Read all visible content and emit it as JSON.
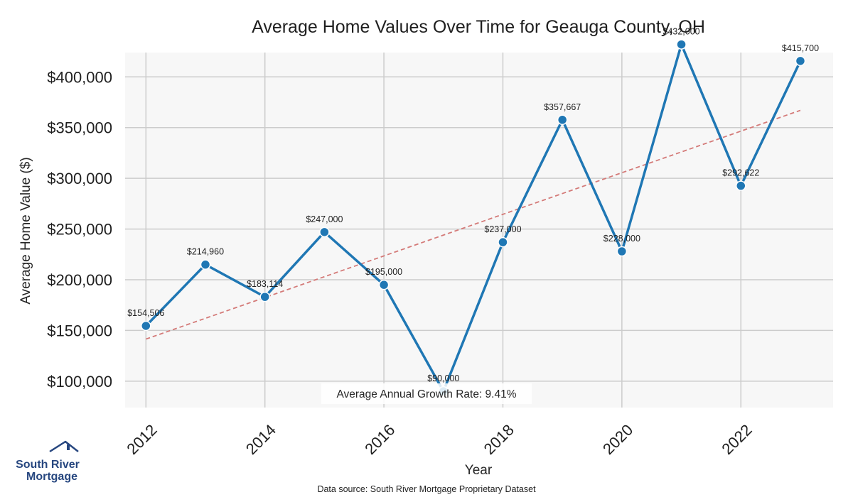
{
  "chart_data": {
    "type": "line",
    "title": "Average Home Values Over Time for Geauga County, OH",
    "xlabel": "Year",
    "ylabel": "Average Home Value ($)",
    "x": [
      2012,
      2013,
      2014,
      2015,
      2016,
      2017,
      2018,
      2019,
      2020,
      2021,
      2022,
      2023
    ],
    "series": [
      {
        "values": [
          154506,
          214960,
          183114,
          247000,
          195000,
          90000,
          237000,
          357667,
          228000,
          432000,
          292622,
          415700
        ],
        "color": "#1f77b4"
      }
    ],
    "data_labels": [
      "$154,506",
      "$214,960",
      "$183,114",
      "$247,000",
      "$195,000",
      "$90,000",
      "$237,000",
      "$357,667",
      "$228,000",
      "$432,000",
      "$292,622",
      "$415,700"
    ],
    "trendline": {
      "style": "dashed",
      "color": "#d47a78",
      "start": {
        "x": 2012,
        "y": 141500
      },
      "end": {
        "x": 2023,
        "y": 367000
      }
    },
    "xticks": [
      2012,
      2014,
      2016,
      2018,
      2020,
      2022
    ],
    "xtick_labels": [
      "2012",
      "2014",
      "2016",
      "2018",
      "2020",
      "2022"
    ],
    "yticks": [
      100000,
      150000,
      200000,
      250000,
      300000,
      350000,
      400000
    ],
    "ytick_labels": [
      "$100,000",
      "$150,000",
      "$200,000",
      "$250,000",
      "$300,000",
      "$350,000",
      "$400,000"
    ],
    "xlim": [
      2011.65,
      2023.55
    ],
    "ylim": [
      74000,
      424000
    ],
    "grid": true,
    "annotation": "Average Annual Growth Rate: 9.41%"
  },
  "footer": {
    "source": "Data source: South River Mortgage Proprietary Dataset"
  },
  "logo": {
    "line1": "South River",
    "line2": "Mortgage",
    "color": "#26467f"
  }
}
